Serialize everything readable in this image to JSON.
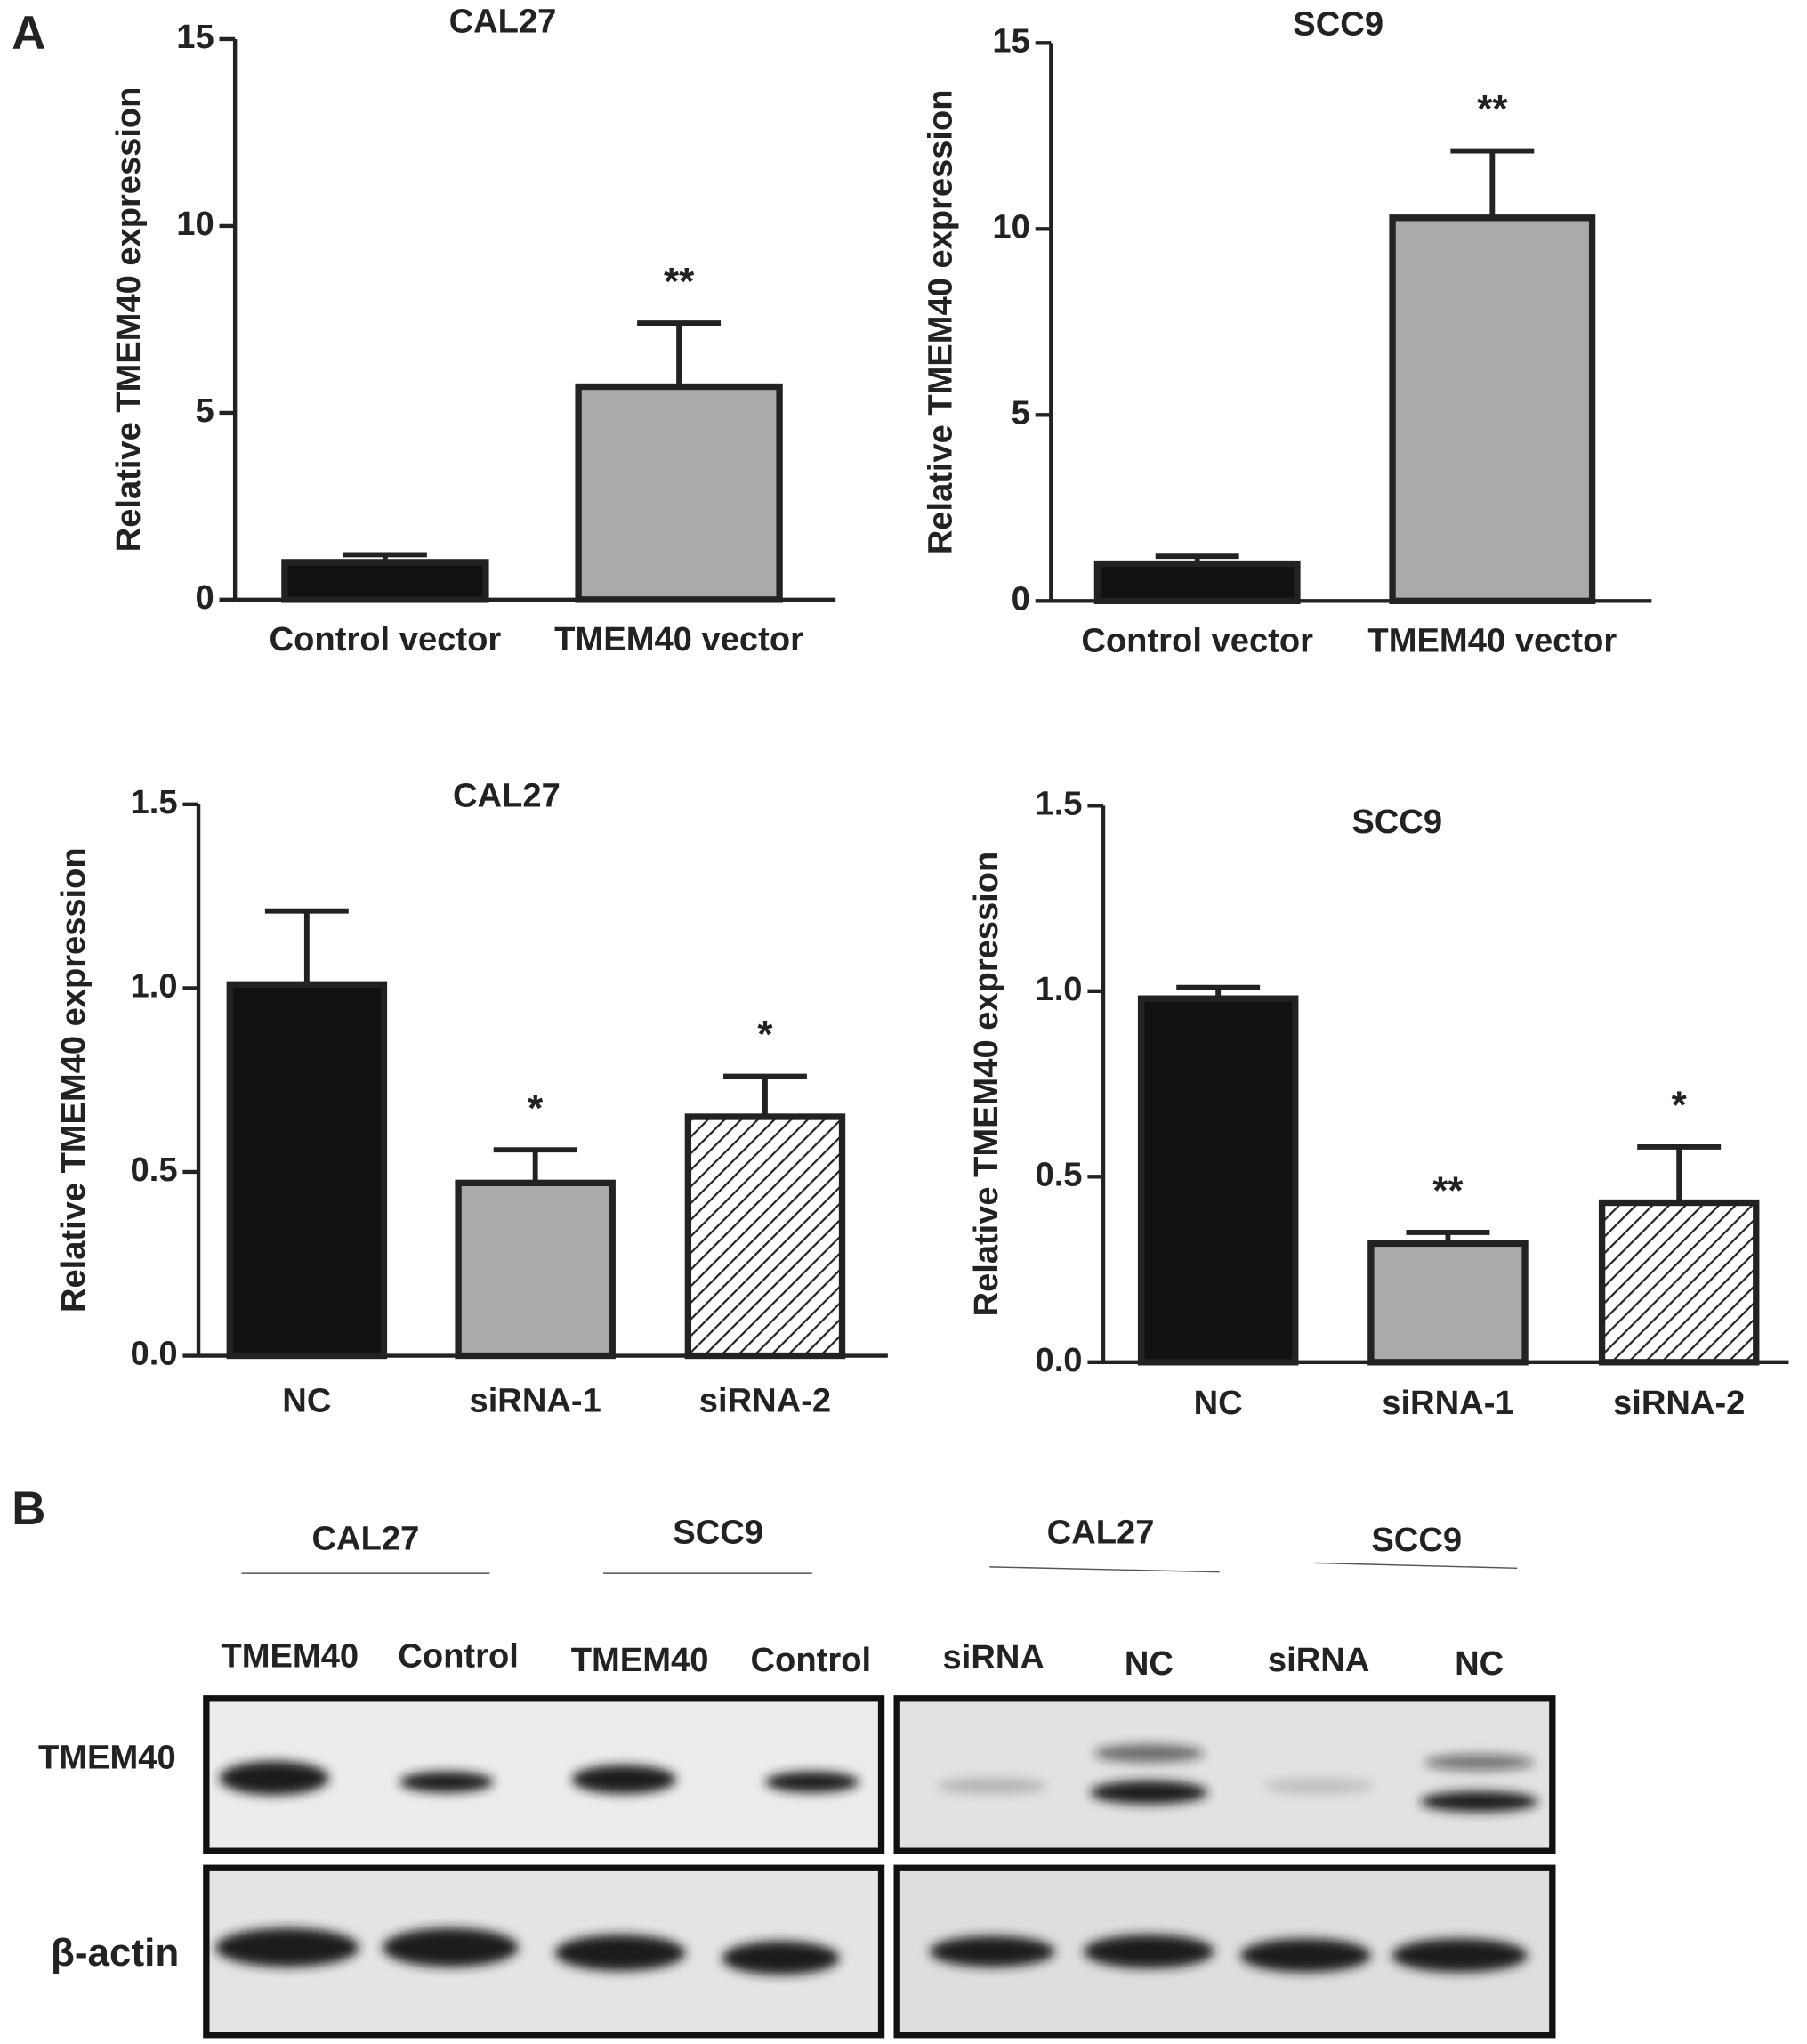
{
  "panel_a": "A",
  "chart_data": [
    {
      "type": "bar",
      "title": "CAL27",
      "ylabel": "Relative TMEM40 expression",
      "categories": [
        "Control vector",
        "TMEM40 vector"
      ],
      "values": [
        1.0,
        5.7
      ],
      "errors": [
        0.2,
        1.7
      ],
      "annotations": [
        null,
        "**"
      ],
      "colors": [
        "#111111",
        "#aaaaaa"
      ],
      "hatch": [
        false,
        false
      ],
      "ylim": [
        0,
        15
      ],
      "yticks": [
        0,
        5,
        10,
        15
      ]
    },
    {
      "type": "bar",
      "title": "SCC9",
      "ylabel": "Relative TMEM40 expression",
      "categories": [
        "Control vector",
        "TMEM40 vector"
      ],
      "values": [
        1.0,
        10.3
      ],
      "errors": [
        0.2,
        1.8
      ],
      "annotations": [
        null,
        "**"
      ],
      "colors": [
        "#111111",
        "#aaaaaa"
      ],
      "hatch": [
        false,
        false
      ],
      "ylim": [
        0,
        15
      ],
      "yticks": [
        0,
        5,
        10,
        15
      ]
    },
    {
      "type": "bar",
      "title": "CAL27",
      "ylabel": "Relative TMEM40 expression",
      "categories": [
        "NC",
        "siRNA-1",
        "siRNA-2"
      ],
      "values": [
        1.01,
        0.47,
        0.65
      ],
      "errors": [
        0.2,
        0.09,
        0.11
      ],
      "annotations": [
        null,
        "*",
        "*"
      ],
      "colors": [
        "#111111",
        "#aaaaaa",
        "#ffffff"
      ],
      "hatch": [
        false,
        false,
        true
      ],
      "ylim": [
        0,
        1.5
      ],
      "yticks": [
        {
          "value": 0,
          "label": "0.0"
        },
        0.5,
        {
          "value": 1,
          "label": "1.0"
        },
        1.5
      ]
    },
    {
      "type": "bar",
      "title": "SCC9",
      "ylabel": "Relative TMEM40 expression",
      "categories": [
        "NC",
        "siRNA-1",
        "siRNA-2"
      ],
      "values": [
        0.98,
        0.32,
        0.43
      ],
      "errors": [
        0.03,
        0.03,
        0.15
      ],
      "annotations": [
        null,
        "**",
        "*"
      ],
      "colors": [
        "#111111",
        "#aaaaaa",
        "#ffffff"
      ],
      "hatch": [
        false,
        false,
        true
      ],
      "ylim": [
        0,
        1.5
      ],
      "yticks": [
        {
          "value": 0,
          "label": "0.0"
        },
        0.5,
        {
          "value": 1,
          "label": "1.0"
        },
        1.5
      ]
    }
  ],
  "blot": {
    "panel_label": "B",
    "groups": [
      "CAL27",
      "SCC9",
      "CAL27",
      "SCC9"
    ],
    "lanes": [
      "TMEM40",
      "Control",
      "TMEM40",
      "Control",
      "siRNA",
      "NC",
      "siRNA",
      "NC"
    ],
    "rows": [
      "TMEM40",
      "β-actin"
    ]
  }
}
